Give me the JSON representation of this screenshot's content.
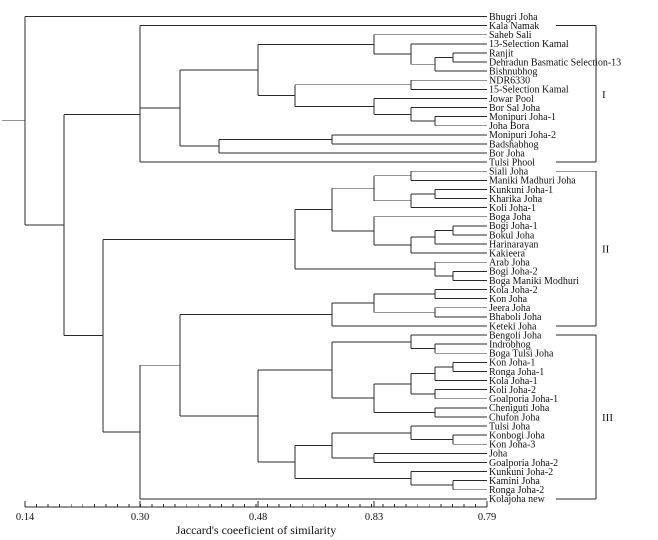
{
  "chart_data": {
    "type": "dendrogram",
    "orientation": "horizontal",
    "xlabel": "Jaccard's coeeficient of similarity",
    "tick_labels": [
      "0.14",
      "0.30",
      "0.48",
      "0.83",
      "0.79"
    ],
    "leaves": [
      "Bhugri Joha",
      "Kala Namak",
      "Saheb Sali",
      "13-Selection Kamal",
      "Ranjit",
      "Dehradun Basmatic Selection-13",
      "Bishnubhog",
      "NDR6330",
      "15-Selection Kamal",
      "Jowar Pool",
      "Bor Sal Joha",
      "Monipuri Joha-1",
      "Joha Bora",
      "Monipuri Joha-2",
      "Badshabhog",
      "Bor Joha",
      "Tulsi Phool",
      "Siali Joha",
      "Maniki Madhuri Joha",
      "Kunkuni Joha-1",
      "Kharika Joha",
      "Koli Joha-1",
      "Boga Joha",
      "Bogi Joha-1",
      "Bokul Joha",
      "Harinarayan",
      "Kakieera",
      "Arab Joha",
      "Bogi Joha-2",
      "Boga Maniki Modhuri",
      "Kola Joha-2",
      "Kon Joha",
      "Jeera Joha",
      "Bhaboli Joha",
      "Keteki Joha",
      "Bengoli Joha",
      "Indrobhog",
      "Boga Tulsi Joha",
      "Kon Joha-1",
      "Ronga Joha-1",
      "Kola Joha-1",
      "Koli Joha-2",
      "Goalporia Joha-1",
      "Cheniguti Joha",
      "Chufon Joha",
      "Tulsi Joha",
      "Konbogi Joha",
      "Kon Joha-3",
      "Joha",
      "Goalporia Joha-2",
      "Kunkuni Joha-2",
      "Kamini Joha",
      "Ronga Joha-2",
      "Kolajoha new"
    ],
    "clusters": [
      {
        "label": "I",
        "first_leaf": 1,
        "last_leaf": 16
      },
      {
        "label": "II",
        "first_leaf": 17,
        "last_leaf": 34
      },
      {
        "label": "III",
        "first_leaf": 35,
        "last_leaf": 53
      }
    ]
  }
}
